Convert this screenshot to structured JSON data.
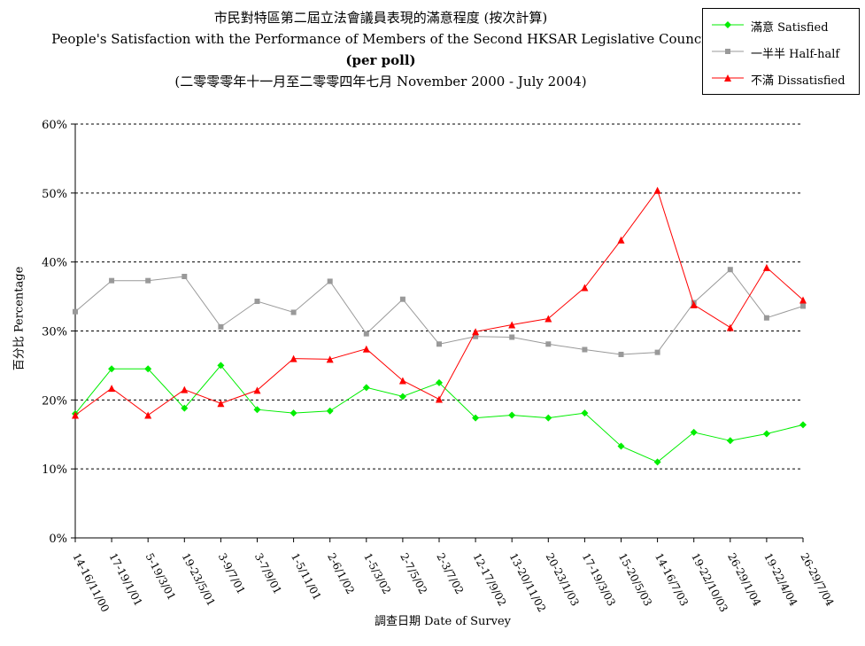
{
  "title": {
    "line1": "市民對特區第二屆立法會議員表現的滿意程度 (按次計算)",
    "line2": "People's Satisfaction with the Performance of Members of the Second HKSAR Legislative Council",
    "line3": "(per poll)",
    "line4": "(二零零零年十一月至二零零四年七月  November 2000 -  July 2004)"
  },
  "legend": [
    {
      "label": "滿意 Satisfied",
      "color": "#00ee00",
      "marker": "diamond"
    },
    {
      "label": "一半半 Half-half",
      "color": "#999999",
      "marker": "square"
    },
    {
      "label": "不滿 Dissatisfied",
      "color": "#ff0000",
      "marker": "triangle"
    }
  ],
  "chart_data": {
    "type": "line",
    "title": "People's Satisfaction with the Performance of Members of the Second HKSAR Legislative Council (per poll)",
    "xlabel": "調查日期 Date of Survey",
    "ylabel": "百分比 Percentage",
    "ylim": [
      0,
      60
    ],
    "yticks": [
      "0%",
      "10%",
      "20%",
      "30%",
      "40%",
      "50%",
      "60%"
    ],
    "grid": "horizontal dashed",
    "legend_position": "top-right",
    "categories": [
      "14-16/11/00",
      "17-19/1/01",
      "5-19/3/01",
      "19-23/5/01",
      "3-9/7/01",
      "3-7/9/01",
      "1-5/11/01",
      "2-6/1/02",
      "1-5/3/02",
      "2-7/5/02",
      "2-3/7/02",
      "12-17/9/02",
      "13-20/11/02",
      "20-23/1/03",
      "17-19/3/03",
      "15-20/5/03",
      "14-16/7/03",
      "19-22/10/03",
      "26-29/1/04",
      "19-22/4/04",
      "26-29/7/04"
    ],
    "series": [
      {
        "name": "滿意 Satisfied",
        "color": "#00ee00",
        "marker": "diamond",
        "values": [
          18.0,
          24.5,
          24.5,
          18.8,
          25.0,
          18.6,
          18.1,
          18.4,
          21.8,
          20.5,
          22.5,
          17.4,
          17.8,
          17.4,
          18.1,
          13.3,
          11.0,
          15.3,
          14.1,
          15.1,
          16.4
        ]
      },
      {
        "name": "一半半 Half-half",
        "color": "#999999",
        "marker": "square",
        "values": [
          32.8,
          37.3,
          37.3,
          37.9,
          30.6,
          34.3,
          32.7,
          37.2,
          29.6,
          34.6,
          28.1,
          29.2,
          29.1,
          28.1,
          27.3,
          26.6,
          26.9,
          34.1,
          38.9,
          31.9,
          33.6
        ]
      },
      {
        "name": "不滿 Dissatisfied",
        "color": "#ff0000",
        "marker": "triangle",
        "values": [
          17.8,
          21.7,
          17.8,
          21.5,
          19.5,
          21.4,
          26.0,
          25.9,
          27.4,
          22.8,
          20.1,
          29.9,
          30.9,
          31.8,
          36.3,
          43.2,
          50.4,
          33.8,
          30.5,
          39.2,
          34.5
        ]
      }
    ]
  }
}
